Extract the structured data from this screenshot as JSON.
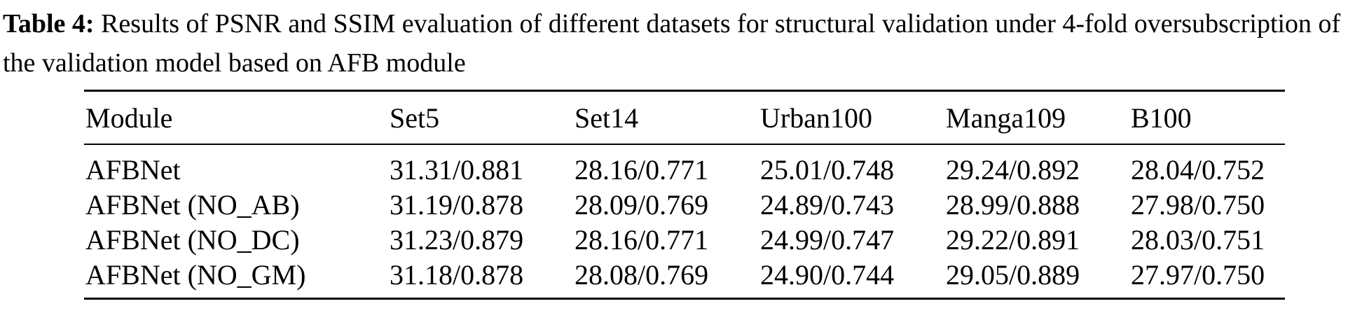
{
  "caption": {
    "label": "Table 4:",
    "text": " Results of PSNR and SSIM evaluation of different datasets for structural validation under 4-fold oversubscription of the validation model based on AFB module"
  },
  "table": {
    "headers": [
      "Module",
      "Set5",
      "Set14",
      "Urban100",
      "Manga109",
      "B100"
    ],
    "rows": [
      [
        "AFBNet",
        "31.31/0.881",
        "28.16/0.771",
        "25.01/0.748",
        "29.24/0.892",
        "28.04/0.752"
      ],
      [
        "AFBNet (NO_AB)",
        "31.19/0.878",
        "28.09/0.769",
        "24.89/0.743",
        "28.99/0.888",
        "27.98/0.750"
      ],
      [
        "AFBNet (NO_DC)",
        "31.23/0.879",
        "28.16/0.771",
        "24.99/0.747",
        "29.22/0.891",
        "28.03/0.751"
      ],
      [
        "AFBNet (NO_GM)",
        "31.18/0.878",
        "28.08/0.769",
        "24.90/0.744",
        "29.05/0.889",
        "27.97/0.750"
      ]
    ]
  }
}
